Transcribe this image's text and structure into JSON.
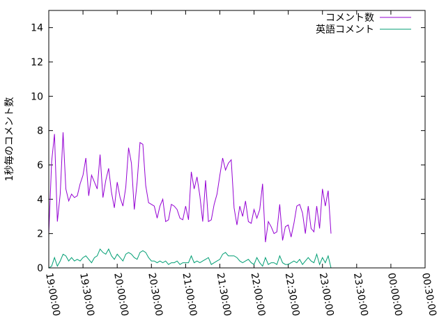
{
  "chart_data": {
    "type": "line",
    "ylabel": "1秒毎のコメント数",
    "xlabel": "",
    "ylim": [
      0,
      15
    ],
    "y_ticks": [
      0,
      2,
      4,
      6,
      8,
      10,
      12,
      14
    ],
    "x_range": [
      "19:00:00",
      "00:30:00"
    ],
    "x_ticks": [
      "19:00:00",
      "19:30:00",
      "20:00:00",
      "20:30:00",
      "21:00:00",
      "21:30:00",
      "22:00:00",
      "22:30:00",
      "23:00:00",
      "23:30:00",
      "00:00:00",
      "00:30:00"
    ],
    "legend_position": "top-right",
    "grid": false,
    "series": [
      {
        "name": "コメント数",
        "color": "#9400d3",
        "points": [
          [
            "19:00:00",
            2.0
          ],
          [
            "19:02:30",
            6.2
          ],
          [
            "19:05:00",
            7.8
          ],
          [
            "19:07:30",
            2.7
          ],
          [
            "19:10:00",
            4.3
          ],
          [
            "19:12:30",
            7.9
          ],
          [
            "19:15:00",
            4.6
          ],
          [
            "19:17:30",
            3.9
          ],
          [
            "19:20:00",
            4.3
          ],
          [
            "19:22:30",
            4.1
          ],
          [
            "19:25:00",
            4.2
          ],
          [
            "19:27:30",
            4.9
          ],
          [
            "19:30:00",
            5.4
          ],
          [
            "19:32:30",
            6.4
          ],
          [
            "19:35:00",
            4.2
          ],
          [
            "19:37:30",
            5.4
          ],
          [
            "19:40:00",
            5.0
          ],
          [
            "19:42:30",
            4.6
          ],
          [
            "19:45:00",
            6.6
          ],
          [
            "19:47:30",
            4.1
          ],
          [
            "19:50:00",
            5.1
          ],
          [
            "19:52:30",
            5.8
          ],
          [
            "19:55:00",
            4.4
          ],
          [
            "19:57:30",
            3.5
          ],
          [
            "20:00:00",
            5.0
          ],
          [
            "20:02:30",
            4.1
          ],
          [
            "20:05:00",
            3.6
          ],
          [
            "20:07:30",
            4.7
          ],
          [
            "20:10:00",
            7.0
          ],
          [
            "20:12:30",
            6.1
          ],
          [
            "20:15:00",
            3.4
          ],
          [
            "20:17:30",
            5.0
          ],
          [
            "20:20:00",
            7.3
          ],
          [
            "20:22:30",
            7.2
          ],
          [
            "20:25:00",
            4.8
          ],
          [
            "20:27:30",
            3.8
          ],
          [
            "20:30:00",
            3.7
          ],
          [
            "20:32:30",
            3.6
          ],
          [
            "20:35:00",
            2.9
          ],
          [
            "20:37:30",
            3.6
          ],
          [
            "20:40:00",
            4.0
          ],
          [
            "20:42:30",
            2.7
          ],
          [
            "20:45:00",
            2.8
          ],
          [
            "20:47:30",
            3.7
          ],
          [
            "20:50:00",
            3.6
          ],
          [
            "20:52:30",
            3.4
          ],
          [
            "20:55:00",
            2.9
          ],
          [
            "20:57:30",
            2.8
          ],
          [
            "21:00:00",
            3.6
          ],
          [
            "21:02:30",
            2.8
          ],
          [
            "21:05:00",
            5.6
          ],
          [
            "21:07:30",
            4.6
          ],
          [
            "21:10:00",
            5.3
          ],
          [
            "21:12:30",
            4.2
          ],
          [
            "21:15:00",
            2.7
          ],
          [
            "21:17:30",
            5.1
          ],
          [
            "21:20:00",
            2.7
          ],
          [
            "21:22:30",
            2.8
          ],
          [
            "21:25:00",
            3.7
          ],
          [
            "21:27:30",
            4.3
          ],
          [
            "21:30:00",
            5.4
          ],
          [
            "21:32:30",
            6.4
          ],
          [
            "21:35:00",
            5.7
          ],
          [
            "21:37:30",
            6.1
          ],
          [
            "21:40:00",
            6.3
          ],
          [
            "21:42:30",
            3.5
          ],
          [
            "21:45:00",
            2.5
          ],
          [
            "21:47:30",
            3.6
          ],
          [
            "21:50:00",
            3.0
          ],
          [
            "21:52:30",
            3.9
          ],
          [
            "21:55:00",
            2.7
          ],
          [
            "21:57:30",
            2.6
          ],
          [
            "22:00:00",
            3.4
          ],
          [
            "22:02:30",
            2.9
          ],
          [
            "22:05:00",
            3.4
          ],
          [
            "22:07:30",
            4.9
          ],
          [
            "22:10:00",
            1.5
          ],
          [
            "22:12:30",
            2.7
          ],
          [
            "22:15:00",
            2.4
          ],
          [
            "22:17:30",
            2.0
          ],
          [
            "22:20:00",
            2.1
          ],
          [
            "22:22:30",
            3.7
          ],
          [
            "22:25:00",
            1.6
          ],
          [
            "22:27:30",
            2.4
          ],
          [
            "22:30:00",
            2.5
          ],
          [
            "22:32:30",
            1.8
          ],
          [
            "22:35:00",
            2.6
          ],
          [
            "22:37:30",
            3.6
          ],
          [
            "22:40:00",
            3.7
          ],
          [
            "22:42:30",
            3.2
          ],
          [
            "22:45:00",
            2.0
          ],
          [
            "22:47:30",
            3.6
          ],
          [
            "22:50:00",
            2.3
          ],
          [
            "22:52:30",
            2.1
          ],
          [
            "22:55:00",
            3.6
          ],
          [
            "22:57:30",
            2.3
          ],
          [
            "23:00:00",
            4.6
          ],
          [
            "23:02:30",
            3.6
          ],
          [
            "23:05:00",
            4.5
          ],
          [
            "23:07:30",
            2.0
          ]
        ]
      },
      {
        "name": "英語コメント",
        "color": "#009e73",
        "points": [
          [
            "19:00:00",
            0.0
          ],
          [
            "19:02:30",
            0.1
          ],
          [
            "19:05:00",
            0.6
          ],
          [
            "19:07:30",
            0.1
          ],
          [
            "19:10:00",
            0.4
          ],
          [
            "19:12:30",
            0.8
          ],
          [
            "19:15:00",
            0.7
          ],
          [
            "19:17:30",
            0.4
          ],
          [
            "19:20:00",
            0.6
          ],
          [
            "19:22:30",
            0.4
          ],
          [
            "19:25:00",
            0.5
          ],
          [
            "19:27:30",
            0.4
          ],
          [
            "19:30:00",
            0.6
          ],
          [
            "19:32:30",
            0.7
          ],
          [
            "19:35:00",
            0.5
          ],
          [
            "19:37:30",
            0.3
          ],
          [
            "19:40:00",
            0.6
          ],
          [
            "19:42:30",
            0.7
          ],
          [
            "19:45:00",
            1.1
          ],
          [
            "19:47:30",
            0.9
          ],
          [
            "19:50:00",
            0.8
          ],
          [
            "19:52:30",
            1.1
          ],
          [
            "19:55:00",
            0.7
          ],
          [
            "19:57:30",
            0.5
          ],
          [
            "20:00:00",
            0.8
          ],
          [
            "20:02:30",
            0.6
          ],
          [
            "20:05:00",
            0.4
          ],
          [
            "20:07:30",
            0.8
          ],
          [
            "20:10:00",
            0.9
          ],
          [
            "20:12:30",
            0.8
          ],
          [
            "20:15:00",
            0.6
          ],
          [
            "20:17:30",
            0.5
          ],
          [
            "20:20:00",
            0.9
          ],
          [
            "20:22:30",
            1.0
          ],
          [
            "20:25:00",
            0.9
          ],
          [
            "20:27:30",
            0.6
          ],
          [
            "20:30:00",
            0.4
          ],
          [
            "20:32:30",
            0.4
          ],
          [
            "20:35:00",
            0.3
          ],
          [
            "20:37:30",
            0.4
          ],
          [
            "20:40:00",
            0.3
          ],
          [
            "20:42:30",
            0.4
          ],
          [
            "20:45:00",
            0.2
          ],
          [
            "20:47:30",
            0.3
          ],
          [
            "20:50:00",
            0.3
          ],
          [
            "20:52:30",
            0.4
          ],
          [
            "20:55:00",
            0.2
          ],
          [
            "20:57:30",
            0.3
          ],
          [
            "21:00:00",
            0.3
          ],
          [
            "21:02:30",
            0.3
          ],
          [
            "21:05:00",
            0.7
          ],
          [
            "21:07:30",
            0.3
          ],
          [
            "21:10:00",
            0.4
          ],
          [
            "21:12:30",
            0.3
          ],
          [
            "21:15:00",
            0.4
          ],
          [
            "21:17:30",
            0.5
          ],
          [
            "21:20:00",
            0.6
          ],
          [
            "21:22:30",
            0.2
          ],
          [
            "21:25:00",
            0.3
          ],
          [
            "21:27:30",
            0.4
          ],
          [
            "21:30:00",
            0.5
          ],
          [
            "21:32:30",
            0.8
          ],
          [
            "21:35:00",
            0.9
          ],
          [
            "21:37:30",
            0.7
          ],
          [
            "21:40:00",
            0.7
          ],
          [
            "21:42:30",
            0.7
          ],
          [
            "21:45:00",
            0.6
          ],
          [
            "21:47:30",
            0.4
          ],
          [
            "21:50:00",
            0.3
          ],
          [
            "21:52:30",
            0.4
          ],
          [
            "21:55:00",
            0.5
          ],
          [
            "21:57:30",
            0.3
          ],
          [
            "22:00:00",
            0.2
          ],
          [
            "22:02:30",
            0.6
          ],
          [
            "22:05:00",
            0.3
          ],
          [
            "22:07:30",
            0.1
          ],
          [
            "22:10:00",
            0.6
          ],
          [
            "22:12:30",
            0.2
          ],
          [
            "22:15:00",
            0.3
          ],
          [
            "22:17:30",
            0.3
          ],
          [
            "22:20:00",
            0.2
          ],
          [
            "22:22:30",
            0.7
          ],
          [
            "22:25:00",
            0.3
          ],
          [
            "22:27:30",
            0.2
          ],
          [
            "22:30:00",
            0.2
          ],
          [
            "22:32:30",
            0.3
          ],
          [
            "22:35:00",
            0.4
          ],
          [
            "22:37:30",
            0.3
          ],
          [
            "22:40:00",
            0.5
          ],
          [
            "22:42:30",
            0.2
          ],
          [
            "22:45:00",
            0.4
          ],
          [
            "22:47:30",
            0.6
          ],
          [
            "22:50:00",
            0.4
          ],
          [
            "22:52:30",
            0.3
          ],
          [
            "22:55:00",
            0.8
          ],
          [
            "22:57:30",
            0.2
          ],
          [
            "23:00:00",
            0.6
          ],
          [
            "23:02:30",
            0.3
          ],
          [
            "23:05:00",
            0.7
          ],
          [
            "23:07:30",
            0.0
          ]
        ]
      }
    ]
  }
}
